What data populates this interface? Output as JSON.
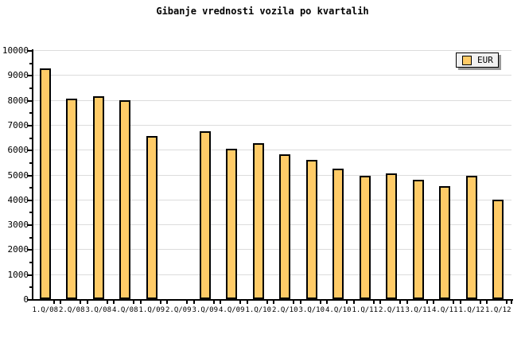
{
  "chart_data": {
    "type": "bar",
    "title": "Gibanje vrednosti vozila po kvartalih",
    "categories": [
      "1.Q/08",
      "2.Q/08",
      "3.Q/08",
      "4.Q/08",
      "1.Q/09",
      "2.Q/09",
      "3.Q/09",
      "4.Q/09",
      "1.Q/10",
      "2.Q/10",
      "3.Q/10",
      "4.Q/10",
      "1.Q/11",
      "2.Q/11",
      "3.Q/11",
      "4.Q/11",
      "1.Q/12",
      "1.Q/12"
    ],
    "values": [
      9250,
      8050,
      8150,
      8000,
      6550,
      null,
      6750,
      6050,
      6250,
      5800,
      5600,
      5250,
      4950,
      5050,
      4800,
      4550,
      4950,
      4000
    ],
    "missing_categories": [
      "2.Q/09"
    ],
    "xlabel": "",
    "ylabel": "",
    "ylim": [
      0,
      10000
    ],
    "ytick_major": 1000,
    "ytick_minor": 500,
    "ytick_labels": [
      "0",
      "1000",
      "2000",
      "3000",
      "4000",
      "5000",
      "6000",
      "7000",
      "8000",
      "9000",
      "10000"
    ],
    "grid": "horizontal",
    "legend": {
      "label": "EUR",
      "position": "top-right"
    },
    "colors": {
      "bar_fill": "#ffcb67",
      "bar_border": "#000000",
      "grid": "#dcdcdc",
      "axis": "#000000",
      "legend_bg": "#f1f1f1",
      "legend_shadow": "#999999",
      "background": "#ffffff"
    }
  }
}
